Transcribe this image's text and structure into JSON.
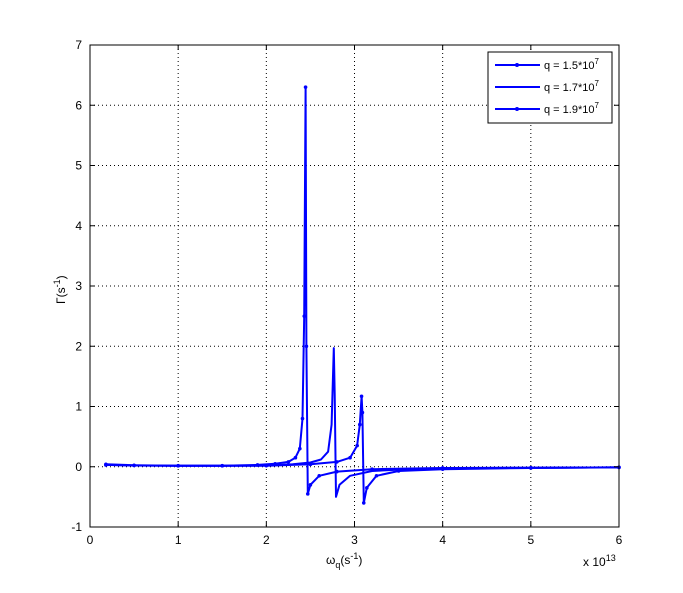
{
  "chart_data": {
    "type": "line",
    "title": "",
    "xlabel": "ω",
    "xlabel_sub": "q",
    "xlabel_unit_open": "(s",
    "xlabel_unit_sup": "-1",
    "xlabel_unit_close": ")",
    "ylabel": "Γ(s",
    "ylabel_sup": "-1",
    "ylabel_close": ")",
    "x_multiplier": "x 10",
    "x_multiplier_exp": "13",
    "xlim": [
      0,
      6
    ],
    "ylim": [
      -1,
      7
    ],
    "xticks": [
      "0",
      "1",
      "2",
      "3",
      "4",
      "5",
      "6"
    ],
    "yticks": [
      "-1",
      "0",
      "1",
      "2",
      "3",
      "4",
      "5",
      "6",
      "7"
    ],
    "grid": true,
    "legend_position": "top-right",
    "color": "#0000ff",
    "series": [
      {
        "name_base": "q = 1.5*10",
        "name_exp": "7",
        "marker": "dot",
        "points": [
          [
            0.18,
            0.04
          ],
          [
            0.5,
            0.025
          ],
          [
            1.0,
            0.018
          ],
          [
            1.5,
            0.018
          ],
          [
            1.9,
            0.03
          ],
          [
            2.1,
            0.05
          ],
          [
            2.25,
            0.08
          ],
          [
            2.33,
            0.15
          ],
          [
            2.38,
            0.3
          ],
          [
            2.41,
            0.8
          ],
          [
            2.43,
            2.5
          ],
          [
            2.445,
            6.3
          ],
          [
            2.455,
            2.0
          ],
          [
            2.47,
            -0.45
          ],
          [
            2.5,
            -0.3
          ],
          [
            2.6,
            -0.15
          ],
          [
            2.8,
            -0.08
          ],
          [
            3.2,
            -0.04
          ],
          [
            4.0,
            -0.02
          ],
          [
            5.0,
            -0.015
          ],
          [
            6.0,
            -0.01
          ]
        ]
      },
      {
        "name_base": "q = 1.7*10",
        "name_exp": "7",
        "marker": "none",
        "points": [
          [
            0.18,
            0.03
          ],
          [
            0.5,
            0.02
          ],
          [
            1.0,
            0.015
          ],
          [
            1.5,
            0.015
          ],
          [
            2.0,
            0.02
          ],
          [
            2.3,
            0.04
          ],
          [
            2.5,
            0.07
          ],
          [
            2.62,
            0.12
          ],
          [
            2.7,
            0.25
          ],
          [
            2.74,
            0.7
          ],
          [
            2.765,
            1.97
          ],
          [
            2.775,
            1.2
          ],
          [
            2.79,
            -0.5
          ],
          [
            2.83,
            -0.3
          ],
          [
            2.95,
            -0.15
          ],
          [
            3.2,
            -0.07
          ],
          [
            3.6,
            -0.04
          ],
          [
            4.5,
            -0.02
          ],
          [
            6.0,
            -0.01
          ]
        ]
      },
      {
        "name_base": "q = 1.9*10",
        "name_exp": "7",
        "marker": "dot",
        "points": [
          [
            0.18,
            0.03
          ],
          [
            0.5,
            0.02
          ],
          [
            1.0,
            0.015
          ],
          [
            1.5,
            0.015
          ],
          [
            2.0,
            0.018
          ],
          [
            2.5,
            0.04
          ],
          [
            2.8,
            0.08
          ],
          [
            2.95,
            0.15
          ],
          [
            3.03,
            0.35
          ],
          [
            3.06,
            0.7
          ],
          [
            3.08,
            1.17
          ],
          [
            3.09,
            0.9
          ],
          [
            3.105,
            -0.6
          ],
          [
            3.14,
            -0.35
          ],
          [
            3.25,
            -0.15
          ],
          [
            3.5,
            -0.07
          ],
          [
            4.0,
            -0.04
          ],
          [
            5.0,
            -0.02
          ],
          [
            6.0,
            -0.01
          ]
        ]
      }
    ]
  }
}
